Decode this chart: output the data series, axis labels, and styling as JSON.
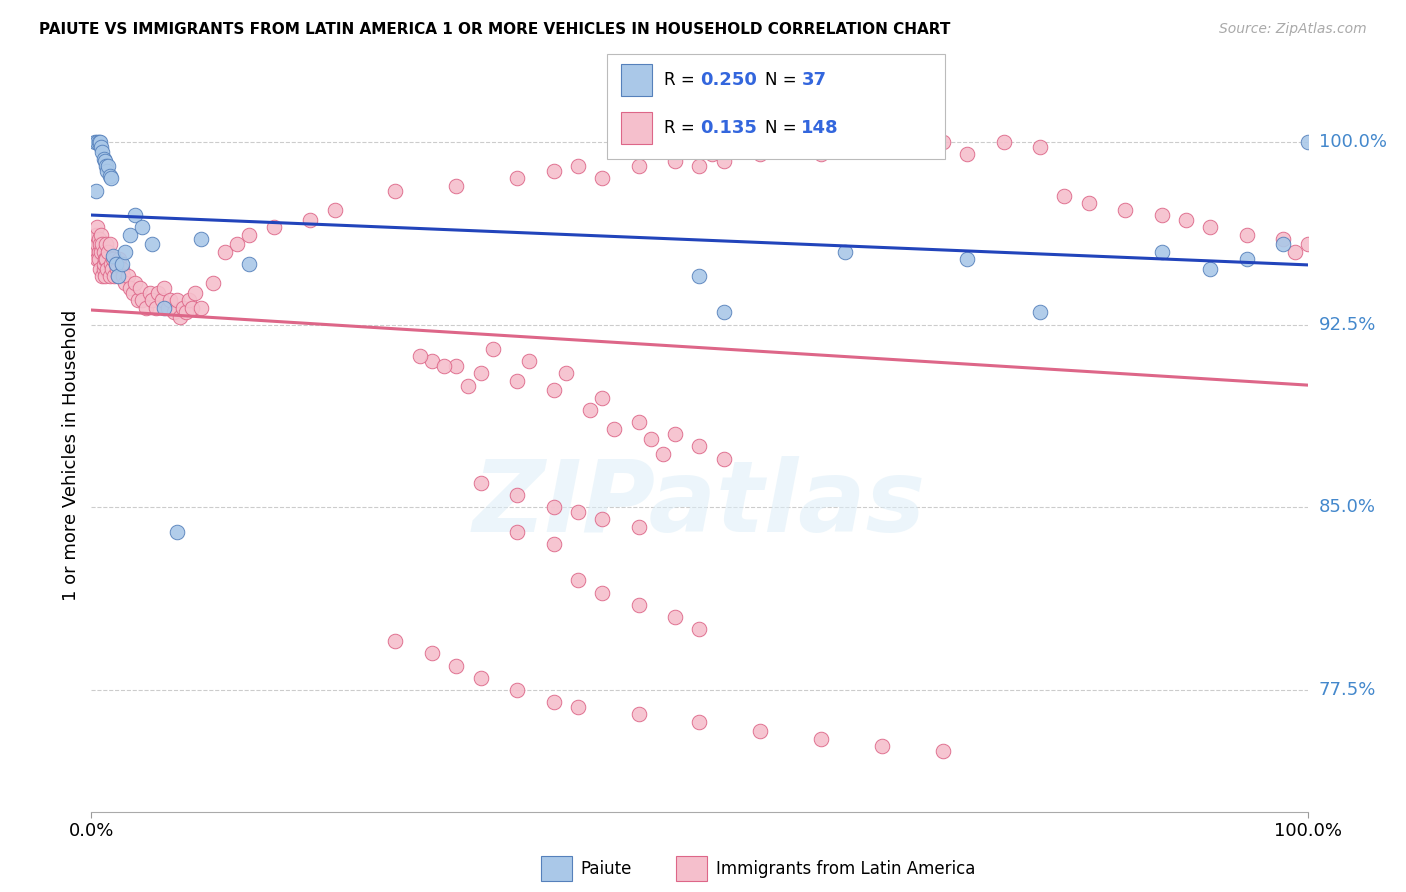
{
  "title": "PAIUTE VS IMMIGRANTS FROM LATIN AMERICA 1 OR MORE VEHICLES IN HOUSEHOLD CORRELATION CHART",
  "source": "Source: ZipAtlas.com",
  "ylabel": "1 or more Vehicles in Household",
  "right_yticks": [
    77.5,
    85.0,
    92.5,
    100.0
  ],
  "right_ytick_labels": [
    "77.5%",
    "85.0%",
    "92.5%",
    "100.0%"
  ],
  "xmin": 0.0,
  "xmax": 1.0,
  "ymin": 72.5,
  "ymax": 101.8,
  "watermark": "ZIPatlas",
  "legend_r_paiute": "0.250",
  "legend_n_paiute": "37",
  "legend_r_immigrants": "0.135",
  "legend_n_immigrants": "148",
  "paiute_color": "#aac8e8",
  "paiute_edge": "#5580bb",
  "immigrants_color": "#f5bfcc",
  "immigrants_edge": "#dd6688",
  "line_paiute_color": "#2244bb",
  "line_immigrants_color": "#dd6688",
  "paiute_x": [
    0.003,
    0.005,
    0.006,
    0.007,
    0.008,
    0.009,
    0.01,
    0.011,
    0.012,
    0.013,
    0.014,
    0.015,
    0.016,
    0.018,
    0.02,
    0.022,
    0.025,
    0.028,
    0.032,
    0.036,
    0.042,
    0.05,
    0.06,
    0.07,
    0.09,
    0.13,
    0.5,
    0.52,
    0.62,
    0.72,
    0.78,
    0.88,
    0.92,
    0.95,
    0.98,
    1.0,
    0.004
  ],
  "paiute_y": [
    100.0,
    100.0,
    100.0,
    100.0,
    99.8,
    99.6,
    99.3,
    99.2,
    99.0,
    98.8,
    99.0,
    98.6,
    98.5,
    95.3,
    95.0,
    94.5,
    95.0,
    95.5,
    96.2,
    97.0,
    96.5,
    95.8,
    93.2,
    84.0,
    96.0,
    95.0,
    94.5,
    93.0,
    95.5,
    95.2,
    93.0,
    95.5,
    94.8,
    95.2,
    95.8,
    100.0,
    98.0
  ],
  "immigrants_x": [
    0.002,
    0.003,
    0.003,
    0.004,
    0.004,
    0.005,
    0.005,
    0.005,
    0.006,
    0.006,
    0.006,
    0.007,
    0.007,
    0.008,
    0.008,
    0.009,
    0.009,
    0.01,
    0.01,
    0.01,
    0.011,
    0.011,
    0.012,
    0.012,
    0.013,
    0.014,
    0.015,
    0.015,
    0.016,
    0.017,
    0.018,
    0.019,
    0.02,
    0.021,
    0.022,
    0.023,
    0.025,
    0.026,
    0.028,
    0.03,
    0.032,
    0.034,
    0.036,
    0.038,
    0.04,
    0.042,
    0.045,
    0.048,
    0.05,
    0.053,
    0.055,
    0.058,
    0.06,
    0.063,
    0.065,
    0.068,
    0.07,
    0.073,
    0.075,
    0.078,
    0.08,
    0.083,
    0.085,
    0.09,
    0.1,
    0.11,
    0.12,
    0.13,
    0.15,
    0.18,
    0.2,
    0.25,
    0.3,
    0.35,
    0.38,
    0.4,
    0.42,
    0.45,
    0.48,
    0.5,
    0.51,
    0.52,
    0.55,
    0.58,
    0.6,
    0.62,
    0.65,
    0.68,
    0.7,
    0.72,
    0.75,
    0.78,
    0.8,
    0.82,
    0.85,
    0.88,
    0.9,
    0.92,
    0.95,
    0.98,
    1.0,
    0.99,
    0.28,
    0.3,
    0.32,
    0.35,
    0.38,
    0.42,
    0.45,
    0.48,
    0.5,
    0.52,
    0.32,
    0.35,
    0.38,
    0.4,
    0.42,
    0.45,
    0.35,
    0.38,
    0.4,
    0.42,
    0.45,
    0.48,
    0.5,
    0.25,
    0.28,
    0.3,
    0.32,
    0.35,
    0.38,
    0.4,
    0.45,
    0.5,
    0.55,
    0.6,
    0.65,
    0.7,
    0.41,
    0.43,
    0.46,
    0.47,
    0.39,
    0.36,
    0.33,
    0.31,
    0.29,
    0.27
  ],
  "immigrants_y": [
    95.5,
    96.0,
    95.8,
    96.2,
    95.5,
    96.5,
    95.8,
    95.2,
    96.0,
    95.5,
    95.2,
    95.8,
    94.8,
    96.2,
    95.5,
    95.8,
    94.5,
    95.5,
    94.8,
    95.0,
    95.2,
    94.5,
    95.8,
    95.2,
    94.8,
    95.5,
    95.8,
    94.5,
    95.0,
    94.8,
    95.2,
    94.5,
    95.0,
    94.8,
    94.5,
    95.2,
    94.8,
    94.5,
    94.2,
    94.5,
    94.0,
    93.8,
    94.2,
    93.5,
    94.0,
    93.5,
    93.2,
    93.8,
    93.5,
    93.2,
    93.8,
    93.5,
    94.0,
    93.2,
    93.5,
    93.0,
    93.5,
    92.8,
    93.2,
    93.0,
    93.5,
    93.2,
    93.8,
    93.2,
    94.2,
    95.5,
    95.8,
    96.2,
    96.5,
    96.8,
    97.2,
    98.0,
    98.2,
    98.5,
    98.8,
    99.0,
    98.5,
    99.0,
    99.2,
    99.0,
    99.5,
    99.2,
    99.5,
    99.8,
    99.5,
    99.8,
    100.0,
    99.8,
    100.0,
    99.5,
    100.0,
    99.8,
    97.8,
    97.5,
    97.2,
    97.0,
    96.8,
    96.5,
    96.2,
    96.0,
    95.8,
    95.5,
    91.0,
    90.8,
    90.5,
    90.2,
    89.8,
    89.5,
    88.5,
    88.0,
    87.5,
    87.0,
    86.0,
    85.5,
    85.0,
    84.8,
    84.5,
    84.2,
    84.0,
    83.5,
    82.0,
    81.5,
    81.0,
    80.5,
    80.0,
    79.5,
    79.0,
    78.5,
    78.0,
    77.5,
    77.0,
    76.8,
    76.5,
    76.2,
    75.8,
    75.5,
    75.2,
    75.0,
    89.0,
    88.2,
    87.8,
    87.2,
    90.5,
    91.0,
    91.5,
    90.0,
    90.8,
    91.2
  ]
}
